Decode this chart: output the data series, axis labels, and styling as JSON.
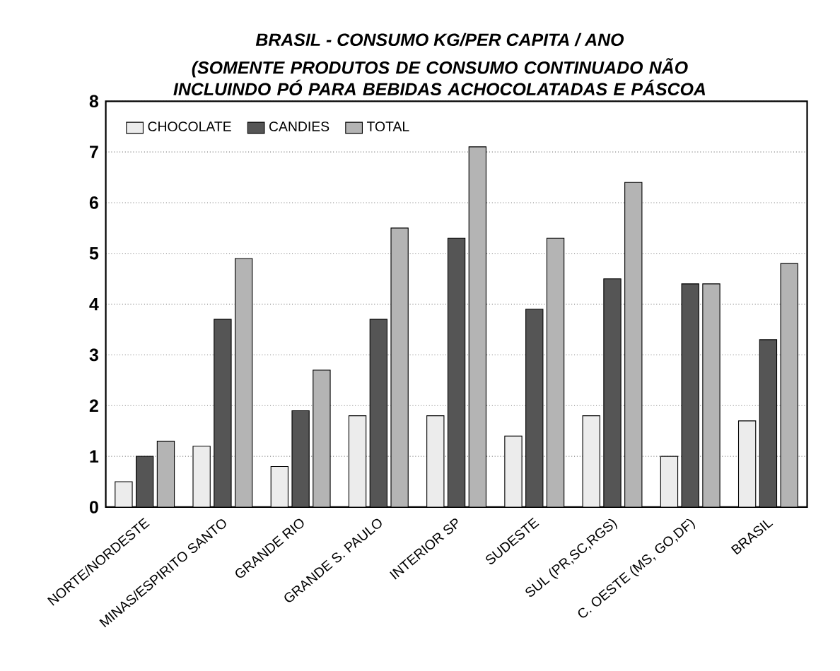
{
  "chart_data": {
    "type": "bar",
    "title": "BRASIL - CONSUMO  KG/PER CAPITA / ANO",
    "subtitle": "(SOMENTE PRODUTOS DE CONSUMO CONTINUADO NÃO INCLUINDO PÓ PARA BEBIDAS ACHOCOLATADAS E PÁSCOA",
    "categories": [
      "NORTE/NORDESTE",
      "MINAS/ESPIRITO SANTO",
      "GRANDE RIO",
      "GRANDE S. PAULO",
      "INTERIOR SP",
      "SUDESTE",
      "SUL (PR,SC,RGS)",
      "C. OESTE (MS, GO,DF)",
      "BRASIL"
    ],
    "series": [
      {
        "name": "CHOCOLATE",
        "color": "#ececec",
        "values": [
          0.5,
          1.2,
          0.8,
          1.8,
          1.8,
          1.4,
          1.8,
          1.0,
          1.7
        ]
      },
      {
        "name": "CANDIES",
        "color": "#555555",
        "values": [
          1.0,
          3.7,
          1.9,
          3.7,
          5.3,
          3.9,
          4.5,
          4.4,
          3.3
        ]
      },
      {
        "name": "TOTAL",
        "color": "#b4b4b4",
        "values": [
          1.3,
          4.9,
          2.7,
          5.5,
          7.1,
          5.3,
          6.4,
          4.4,
          4.8
        ]
      }
    ],
    "ylim": [
      0,
      8
    ],
    "yticks": [
      0,
      1,
      2,
      3,
      4,
      5,
      6,
      7,
      8
    ],
    "grid": "y",
    "legend": "top left"
  }
}
